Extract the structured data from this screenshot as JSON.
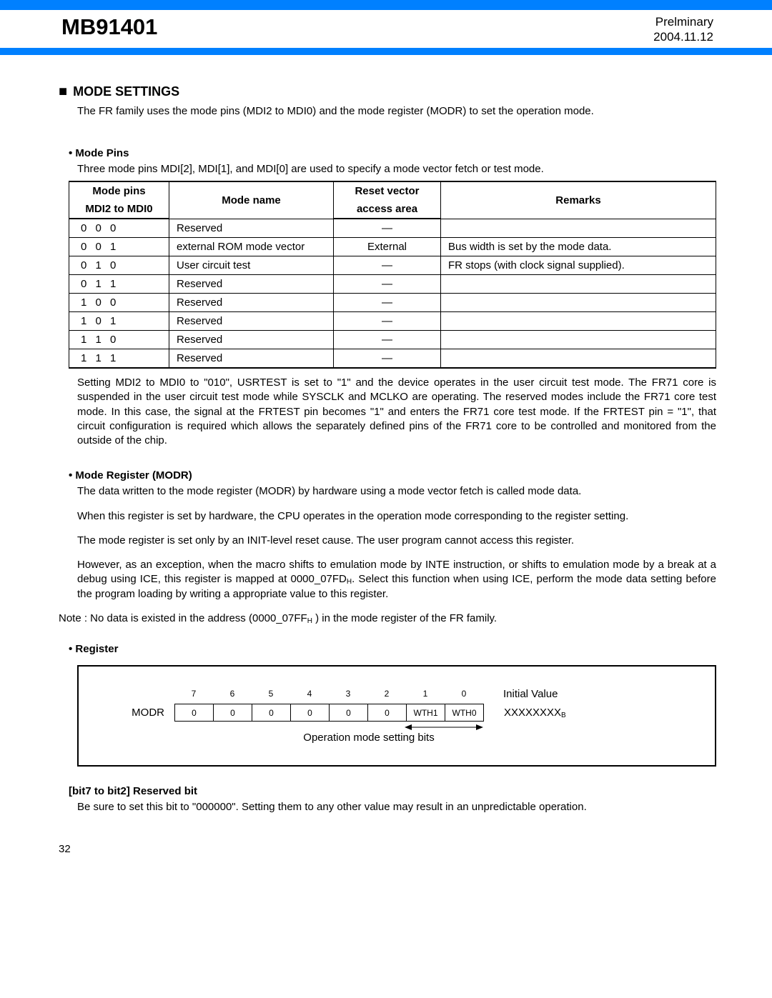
{
  "header": {
    "doc_code": "MB91401",
    "status": "Prelminary",
    "date": "2004.11.12"
  },
  "colors": {
    "blue": "#0080ff"
  },
  "section": {
    "title": "MODE SETTINGS",
    "intro": "The FR family uses the mode pins (MDI2 to MDI0) and the mode register (MODR) to set the operation mode."
  },
  "mode_pins": {
    "heading": "• Mode Pins",
    "desc": "Three mode pins MDI[2], MDI[1], and MDI[0] are used to specify a mode vector fetch or test mode.",
    "table": {
      "headers": {
        "c1a": "Mode pins",
        "c1b": "MDI2 to MDI0",
        "c2": "Mode name",
        "c3a": "Reset vector",
        "c3b": "access area",
        "c4": "Remarks"
      },
      "rows": [
        {
          "pins": "0 0 0",
          "name": "Reserved",
          "vec": "—",
          "rem": ""
        },
        {
          "pins": "0 0 1",
          "name": "external ROM mode vector",
          "vec": "External",
          "rem": "Bus width is set by the mode data."
        },
        {
          "pins": "0 1 0",
          "name": "User circuit test",
          "vec": "—",
          "rem": "FR stops (with clock signal supplied)."
        },
        {
          "pins": "0 1 1",
          "name": "Reserved",
          "vec": "—",
          "rem": ""
        },
        {
          "pins": "1 0 0",
          "name": "Reserved",
          "vec": "—",
          "rem": ""
        },
        {
          "pins": "1 0 1",
          "name": "Reserved",
          "vec": "—",
          "rem": ""
        },
        {
          "pins": "1 1 0",
          "name": "Reserved",
          "vec": "—",
          "rem": ""
        },
        {
          "pins": "1 1 1",
          "name": "Reserved",
          "vec": "—",
          "rem": ""
        }
      ]
    },
    "after": "Setting MDI2 to MDI0 to \"010\", USRTEST is set to \"1\" and the device operates in the user circuit test mode. The FR71 core is suspended in the user circuit test mode while SYSCLK and MCLKO are operating. The reserved modes include the FR71 core test mode. In this case, the signal at the FRTEST pin becomes \"1\" and enters the FR71 core test mode. If the FRTEST pin = \"1\", that circuit configuration is required which allows the separately defined pins of the FR71 core to be controlled and monitored from the outside of the chip."
  },
  "modr": {
    "heading": "• Mode Register (MODR)",
    "p1": "The data written to the mode register (MODR) by hardware using a mode vector fetch is called mode data.",
    "p2": "When this register is set by hardware, the CPU operates in the operation mode corresponding to the register setting.",
    "p3": "The mode register is set only by an INIT-level reset cause. The user program cannot access this register.",
    "p4_a": "However, as an exception, when the macro shifts to emulation mode by INTE instruction, or shifts to emulation mode by a break at a debug using ICE, this register is mapped at 0000_07FD",
    "p4_sub": "H",
    "p4_b": ". Select this function when using ICE, perform the mode data setting before the program loading by writing a appropriate value to this register.",
    "note_a": "Note : No data is existed in the address (0000_07FF",
    "note_sub": "H",
    "note_b": " ) in the mode register of the FR family."
  },
  "register": {
    "heading": "• Register",
    "label": "MODR",
    "bit_numbers": [
      "7",
      "6",
      "5",
      "4",
      "3",
      "2",
      "1",
      "0"
    ],
    "cells": [
      "0",
      "0",
      "0",
      "0",
      "0",
      "0",
      "WTH1",
      "WTH0"
    ],
    "initial_label": "Initial Value",
    "initial_value": "XXXXXXXX",
    "initial_sub": "B",
    "op_label": "Operation mode setting bits"
  },
  "reserved": {
    "heading": "[bit7 to bit2] Reserved bit",
    "text": "Be sure to set this bit to \"000000\". Setting them to any other value may result in an unpredictable operation."
  },
  "page_number": "32"
}
